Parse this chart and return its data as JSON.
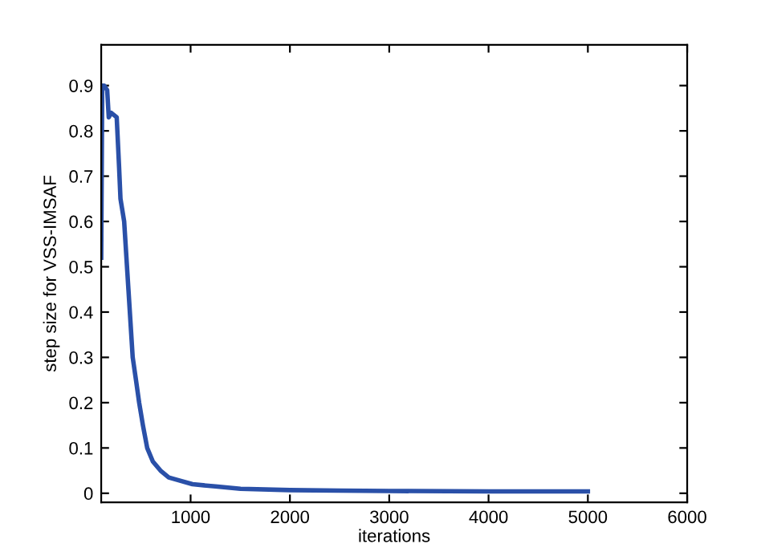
{
  "chart_data": {
    "type": "line",
    "xlabel": "iterations",
    "ylabel": "step size for VSS-IMSAF",
    "x": [
      100,
      110,
      130,
      160,
      176,
      200,
      256,
      280,
      294,
      331,
      374,
      417,
      450,
      482,
      520,
      563,
      620,
      697,
      780,
      858,
      1019,
      1250,
      1503,
      2000,
      2500,
      3000,
      4000,
      5000
    ],
    "series": [
      {
        "color": "#2a50a8",
        "values": [
          0.52,
          0.9,
          0.9,
          0.89,
          0.83,
          0.84,
          0.83,
          0.72,
          0.65,
          0.6,
          0.45,
          0.3,
          0.25,
          0.2,
          0.15,
          0.1,
          0.07,
          0.05,
          0.035,
          0.03,
          0.02,
          0.015,
          0.01,
          0.007,
          0.006,
          0.005,
          0.004,
          0.004
        ]
      }
    ],
    "xlim": [
      100,
      6000
    ],
    "ylim": [
      -0.02,
      0.99
    ],
    "xticks": [
      1000,
      2000,
      3000,
      4000,
      5000,
      6000
    ],
    "yticks": [
      0,
      0.1,
      0.2,
      0.3,
      0.4,
      0.5,
      0.6,
      0.7,
      0.8,
      0.9
    ],
    "grid": false,
    "legend": false
  }
}
